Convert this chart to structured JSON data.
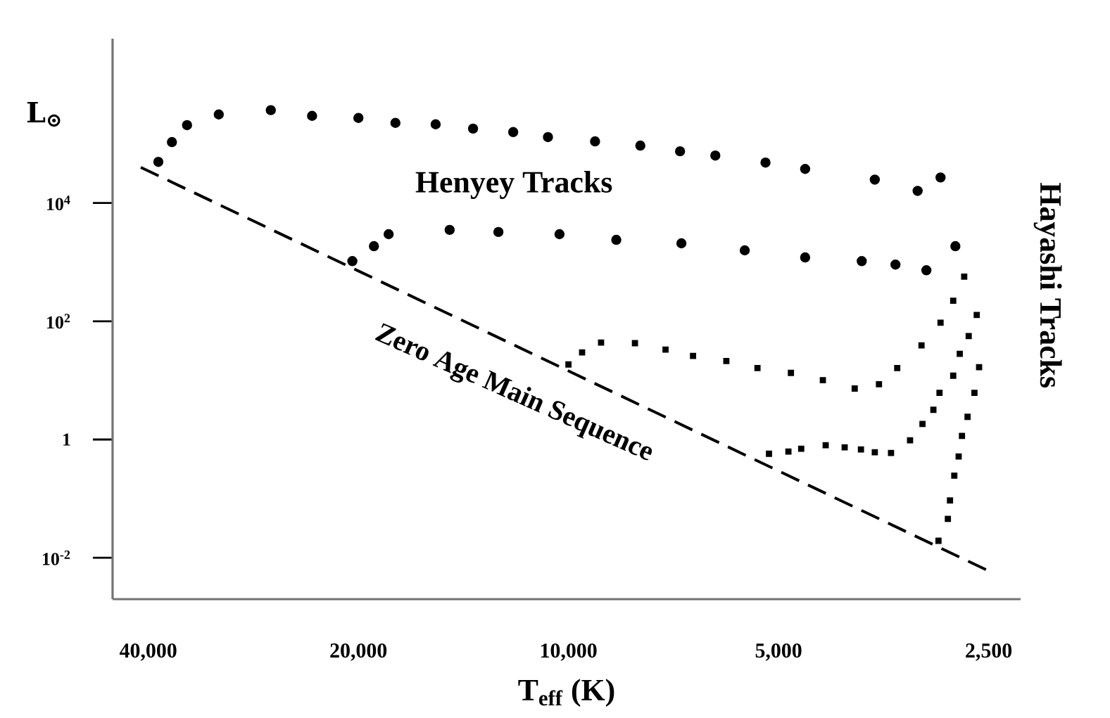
{
  "chart_data": {
    "type": "scatter",
    "xlabel": "T$_{eff}$ (K)",
    "ylabel": "L$_{⊙}$",
    "log": "xy",
    "xlim": [
      45000,
      2250
    ],
    "ylim": [
      0.002,
      6000000
    ],
    "xticks": [
      {
        "value": 40000,
        "label": "40,000"
      },
      {
        "value": 20000,
        "label": "20,000"
      },
      {
        "value": 10000,
        "label": "10,000"
      },
      {
        "value": 5000,
        "label": "5,000"
      },
      {
        "value": 2500,
        "label": "2,500"
      }
    ],
    "yticks": [
      {
        "value": 0.01,
        "label": "10$^{-2}$"
      },
      1,
      {
        "value": 100,
        "label": "10$^{2}$"
      },
      {
        "value": 10000,
        "label": "10$^{4}$"
      }
    ],
    "series": [
      {
        "marker": "circle",
        "color": "#000000",
        "x": [
          38700,
          37000,
          35200,
          31700,
          26700,
          23300,
          20000,
          17700,
          15500,
          13700,
          12000,
          10700,
          9160,
          7890,
          6920,
          6160,
          5220,
          4580,
          3640,
          3160,
          2930
        ],
        "values": [
          49500,
          107000,
          207000,
          314000,
          371000,
          297000,
          274000,
          226000,
          214000,
          181000,
          158000,
          130000,
          110000,
          93300,
          74800,
          63400,
          48200,
          37600,
          24800,
          16000,
          27000
        ]
      },
      {
        "marker": "circle",
        "color": "#000000",
        "x": [
          20400,
          19000,
          18100,
          14800,
          12600,
          10300,
          8540,
          6890,
          5590,
          4580,
          3800,
          3400,
          3070,
          2790
        ],
        "values": [
          1040,
          1860,
          2970,
          3510,
          3230,
          2970,
          2380,
          2080,
          1580,
          1200,
          1040,
          908,
          728,
          1860
        ]
      },
      {
        "marker": "square",
        "color": "#000000",
        "x": [
          10000,
          9560,
          8980,
          8030,
          7260,
          6630,
          5940,
          5360,
          4800,
          4320,
          3890,
          3590,
          3380,
          3120,
          2930,
          2810,
          2710,
          2600,
          2670,
          2580,
          2620,
          2680,
          2730
        ],
        "values": [
          18.6,
          29.7,
          43.7,
          42.6,
          33.2,
          25.9,
          21.3,
          16.2,
          13.4,
          10.1,
          7.28,
          8.59,
          16.2,
          39.2,
          94.6,
          222,
          568,
          128,
          56.1,
          16.7,
          6.17,
          2.42,
          1.15
        ]
      },
      {
        "marker": "square",
        "color": "#000000",
        "x": [
          5160,
          4840,
          4640,
          4280,
          4020,
          3810,
          3640,
          3450,
          3240,
          3110,
          3000,
          2940,
          2810,
          2750,
          2760,
          2800,
          2840,
          2860,
          2950
        ],
        "values": [
          0.575,
          0.625,
          0.698,
          0.802,
          0.738,
          0.679,
          0.608,
          0.592,
          0.972,
          1.83,
          3.18,
          6.17,
          12.0,
          28.1,
          0.516,
          0.245,
          0.0933,
          0.0456,
          0.0194
        ]
      },
      {
        "type": "line",
        "marker": "none",
        "line_style": "dashed",
        "color": "#000000",
        "x": [
          41000,
          2500
        ],
        "values": [
          40000,
          0.006
        ]
      }
    ],
    "annotations": [
      "Henyey Tracks",
      "Zero Age Main Sequence",
      "Hayashi Tracks"
    ]
  }
}
